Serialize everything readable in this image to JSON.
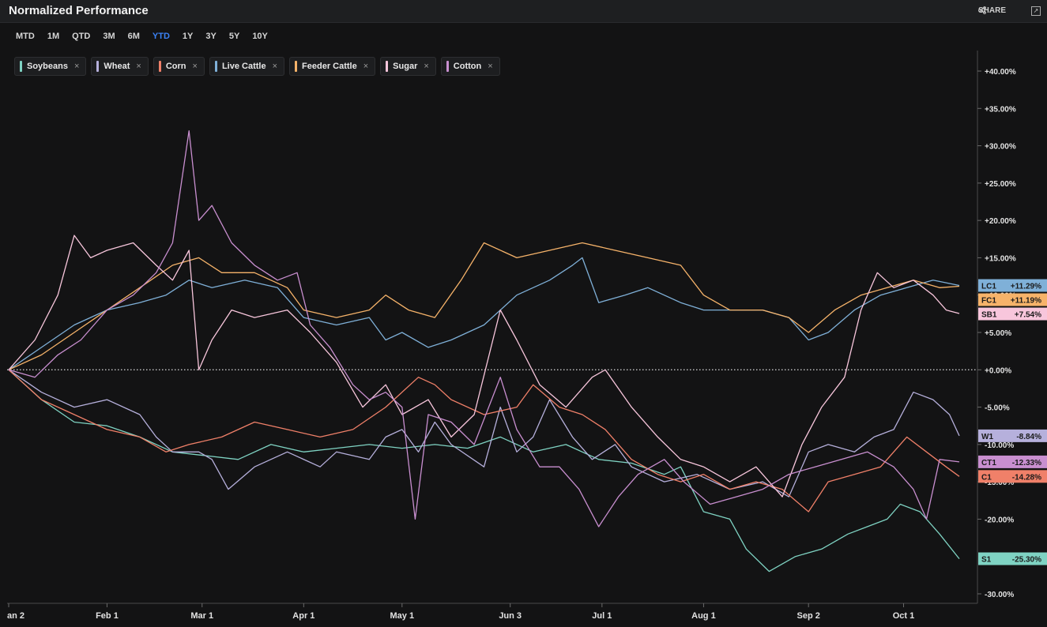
{
  "header": {
    "title": "Normalized Performance",
    "share_label": "SHARE"
  },
  "ranges": [
    "MTD",
    "1M",
    "QTD",
    "3M",
    "6M",
    "YTD",
    "1Y",
    "3Y",
    "5Y",
    "10Y"
  ],
  "active_range": "YTD",
  "legend": [
    {
      "name": "Soybeans",
      "color": "#7fd3c3"
    },
    {
      "name": "Wheat",
      "color": "#b6b0dc"
    },
    {
      "name": "Corn",
      "color": "#f08069"
    },
    {
      "name": "Live Cattle",
      "color": "#7fb0d8"
    },
    {
      "name": "Feeder Cattle",
      "color": "#f6b36a"
    },
    {
      "name": "Sugar",
      "color": "#f8c6dc"
    },
    {
      "name": "Cotton",
      "color": "#c98fd0"
    }
  ],
  "chart_data": {
    "type": "line",
    "title": "Normalized Performance",
    "ylim": [
      -30,
      40
    ],
    "yticks": [
      "+40.00%",
      "+35.00%",
      "+30.00%",
      "+25.00%",
      "+20.00%",
      "+15.00%",
      "+10.00%",
      "+5.00%",
      "+0.00%",
      "-5.00%",
      "-10.00%",
      "-15.00%",
      "-20.00%",
      "-30.00%"
    ],
    "ytick_values": [
      40,
      35,
      30,
      25,
      20,
      15,
      10,
      5,
      0,
      -5,
      -10,
      -15,
      -20,
      -30
    ],
    "x_ticks": [
      {
        "label": "an 2",
        "t": 0
      },
      {
        "label": "Feb 1",
        "t": 30
      },
      {
        "label": "Mar 1",
        "t": 59
      },
      {
        "label": "Apr 1",
        "t": 90
      },
      {
        "label": "May 1",
        "t": 120
      },
      {
        "label": "Jun 3",
        "t": 153
      },
      {
        "label": "Jul 1",
        "t": 181
      },
      {
        "label": "Aug 1",
        "t": 212
      },
      {
        "label": "Sep 2",
        "t": 244
      },
      {
        "label": "Oct 1",
        "t": 273
      }
    ],
    "x_max": 290,
    "baseline": 0,
    "series": [
      {
        "name": "Soybeans",
        "ticker": "S1",
        "color": "#7fd3c3",
        "last": "-25.30%",
        "last_value": -25.3,
        "points": [
          [
            0,
            0
          ],
          [
            10,
            -4
          ],
          [
            20,
            -7
          ],
          [
            30,
            -7.5
          ],
          [
            40,
            -9
          ],
          [
            50,
            -11
          ],
          [
            60,
            -11.5
          ],
          [
            70,
            -12
          ],
          [
            80,
            -10
          ],
          [
            90,
            -11
          ],
          [
            100,
            -10.5
          ],
          [
            110,
            -10
          ],
          [
            120,
            -10.5
          ],
          [
            130,
            -10
          ],
          [
            140,
            -10.5
          ],
          [
            150,
            -9
          ],
          [
            160,
            -11
          ],
          [
            170,
            -10
          ],
          [
            180,
            -12
          ],
          [
            190,
            -12.5
          ],
          [
            200,
            -14
          ],
          [
            205,
            -13
          ],
          [
            212,
            -19
          ],
          [
            220,
            -20
          ],
          [
            225,
            -24
          ],
          [
            232,
            -27
          ],
          [
            240,
            -25
          ],
          [
            248,
            -24
          ],
          [
            256,
            -22
          ],
          [
            262,
            -21
          ],
          [
            268,
            -20
          ],
          [
            272,
            -18
          ],
          [
            278,
            -19
          ],
          [
            284,
            -22
          ],
          [
            290,
            -25.3
          ]
        ]
      },
      {
        "name": "Wheat",
        "ticker": "W1",
        "color": "#b6b0dc",
        "last": "-8.84%",
        "last_value": -8.84,
        "points": [
          [
            0,
            0
          ],
          [
            10,
            -3
          ],
          [
            20,
            -5
          ],
          [
            30,
            -4
          ],
          [
            40,
            -6
          ],
          [
            45,
            -9
          ],
          [
            50,
            -11
          ],
          [
            58,
            -11
          ],
          [
            62,
            -12
          ],
          [
            67,
            -16
          ],
          [
            75,
            -13
          ],
          [
            85,
            -11
          ],
          [
            95,
            -13
          ],
          [
            100,
            -11
          ],
          [
            110,
            -12
          ],
          [
            115,
            -9
          ],
          [
            120,
            -8
          ],
          [
            125,
            -11
          ],
          [
            130,
            -7
          ],
          [
            135,
            -10
          ],
          [
            145,
            -13
          ],
          [
            150,
            -5
          ],
          [
            155,
            -11
          ],
          [
            160,
            -9
          ],
          [
            165,
            -4
          ],
          [
            172,
            -9
          ],
          [
            178,
            -12
          ],
          [
            185,
            -10
          ],
          [
            190,
            -13
          ],
          [
            200,
            -15
          ],
          [
            210,
            -14
          ],
          [
            220,
            -16
          ],
          [
            230,
            -15
          ],
          [
            238,
            -17
          ],
          [
            244,
            -11
          ],
          [
            250,
            -10
          ],
          [
            258,
            -11
          ],
          [
            264,
            -9
          ],
          [
            270,
            -8
          ],
          [
            276,
            -3
          ],
          [
            282,
            -4
          ],
          [
            287,
            -6
          ],
          [
            290,
            -8.84
          ]
        ]
      },
      {
        "name": "Corn",
        "ticker": "C1",
        "color": "#f08069",
        "last": "-14.28%",
        "last_value": -14.28,
        "points": [
          [
            0,
            0
          ],
          [
            10,
            -4
          ],
          [
            20,
            -6
          ],
          [
            30,
            -8
          ],
          [
            40,
            -9
          ],
          [
            48,
            -11
          ],
          [
            55,
            -10
          ],
          [
            65,
            -9
          ],
          [
            75,
            -7
          ],
          [
            85,
            -8
          ],
          [
            95,
            -9
          ],
          [
            105,
            -8
          ],
          [
            115,
            -5
          ],
          [
            125,
            -1
          ],
          [
            130,
            -2
          ],
          [
            135,
            -4
          ],
          [
            145,
            -6
          ],
          [
            155,
            -5
          ],
          [
            160,
            -2
          ],
          [
            168,
            -5
          ],
          [
            175,
            -6
          ],
          [
            182,
            -8
          ],
          [
            190,
            -12
          ],
          [
            198,
            -14
          ],
          [
            205,
            -15
          ],
          [
            212,
            -14
          ],
          [
            220,
            -16
          ],
          [
            228,
            -15
          ],
          [
            236,
            -16
          ],
          [
            244,
            -19
          ],
          [
            250,
            -15
          ],
          [
            258,
            -14
          ],
          [
            266,
            -13
          ],
          [
            274,
            -9
          ],
          [
            280,
            -11
          ],
          [
            286,
            -13
          ],
          [
            290,
            -14.28
          ]
        ]
      },
      {
        "name": "Live Cattle",
        "ticker": "LC1",
        "color": "#7fb0d8",
        "last": "+11.29%",
        "last_value": 11.29,
        "points": [
          [
            0,
            0
          ],
          [
            10,
            3
          ],
          [
            20,
            6
          ],
          [
            30,
            8
          ],
          [
            40,
            9
          ],
          [
            48,
            10
          ],
          [
            55,
            12
          ],
          [
            62,
            11
          ],
          [
            72,
            12
          ],
          [
            82,
            11
          ],
          [
            90,
            7
          ],
          [
            100,
            6
          ],
          [
            110,
            7
          ],
          [
            115,
            4
          ],
          [
            120,
            5
          ],
          [
            128,
            3
          ],
          [
            135,
            4
          ],
          [
            145,
            6
          ],
          [
            155,
            10
          ],
          [
            165,
            12
          ],
          [
            172,
            14
          ],
          [
            175,
            15
          ],
          [
            180,
            9
          ],
          [
            188,
            10
          ],
          [
            195,
            11
          ],
          [
            205,
            9
          ],
          [
            212,
            8
          ],
          [
            220,
            8
          ],
          [
            230,
            8
          ],
          [
            238,
            7
          ],
          [
            244,
            4
          ],
          [
            250,
            5
          ],
          [
            258,
            8
          ],
          [
            266,
            10
          ],
          [
            274,
            11
          ],
          [
            282,
            12
          ],
          [
            290,
            11.29
          ]
        ]
      },
      {
        "name": "Feeder Cattle",
        "ticker": "FC1",
        "color": "#f6b36a",
        "last": "+11.19%",
        "last_value": 11.19,
        "points": [
          [
            0,
            0
          ],
          [
            10,
            2
          ],
          [
            20,
            5
          ],
          [
            30,
            8
          ],
          [
            40,
            11
          ],
          [
            50,
            14
          ],
          [
            58,
            15
          ],
          [
            65,
            13
          ],
          [
            75,
            13
          ],
          [
            85,
            11
          ],
          [
            90,
            8
          ],
          [
            100,
            7
          ],
          [
            110,
            8
          ],
          [
            115,
            10
          ],
          [
            122,
            8
          ],
          [
            130,
            7
          ],
          [
            138,
            12
          ],
          [
            145,
            17
          ],
          [
            155,
            15
          ],
          [
            165,
            16
          ],
          [
            175,
            17
          ],
          [
            185,
            16
          ],
          [
            195,
            15
          ],
          [
            205,
            14
          ],
          [
            212,
            10
          ],
          [
            220,
            8
          ],
          [
            230,
            8
          ],
          [
            238,
            7
          ],
          [
            244,
            5
          ],
          [
            252,
            8
          ],
          [
            260,
            10
          ],
          [
            268,
            11
          ],
          [
            276,
            12
          ],
          [
            284,
            11
          ],
          [
            290,
            11.19
          ]
        ]
      },
      {
        "name": "Sugar",
        "ticker": "SB1",
        "color": "#f8c6dc",
        "last": "+7.54%",
        "last_value": 7.54,
        "points": [
          [
            0,
            0
          ],
          [
            8,
            4
          ],
          [
            15,
            10
          ],
          [
            20,
            18
          ],
          [
            25,
            15
          ],
          [
            30,
            16
          ],
          [
            38,
            17
          ],
          [
            45,
            14
          ],
          [
            50,
            12
          ],
          [
            55,
            16
          ],
          [
            58,
            0
          ],
          [
            62,
            4
          ],
          [
            68,
            8
          ],
          [
            75,
            7
          ],
          [
            85,
            8
          ],
          [
            92,
            5
          ],
          [
            100,
            1
          ],
          [
            108,
            -5
          ],
          [
            115,
            -2
          ],
          [
            120,
            -6
          ],
          [
            128,
            -4
          ],
          [
            135,
            -9
          ],
          [
            142,
            -6
          ],
          [
            150,
            8
          ],
          [
            155,
            4
          ],
          [
            162,
            -2
          ],
          [
            170,
            -5
          ],
          [
            178,
            -1
          ],
          [
            182,
            0
          ],
          [
            190,
            -5
          ],
          [
            198,
            -9
          ],
          [
            205,
            -12
          ],
          [
            212,
            -13
          ],
          [
            220,
            -15
          ],
          [
            228,
            -13
          ],
          [
            236,
            -17
          ],
          [
            242,
            -10
          ],
          [
            248,
            -5
          ],
          [
            255,
            -1
          ],
          [
            260,
            8
          ],
          [
            265,
            13
          ],
          [
            270,
            11
          ],
          [
            276,
            12
          ],
          [
            282,
            10
          ],
          [
            286,
            8
          ],
          [
            290,
            7.54
          ]
        ]
      },
      {
        "name": "Cotton",
        "ticker": "CT1",
        "color": "#c98fd0",
        "last": "-12.33%",
        "last_value": -12.33,
        "points": [
          [
            0,
            0
          ],
          [
            8,
            -1
          ],
          [
            15,
            2
          ],
          [
            22,
            4
          ],
          [
            30,
            8
          ],
          [
            38,
            10
          ],
          [
            45,
            13
          ],
          [
            50,
            17
          ],
          [
            55,
            32
          ],
          [
            58,
            20
          ],
          [
            62,
            22
          ],
          [
            68,
            17
          ],
          [
            75,
            14
          ],
          [
            82,
            12
          ],
          [
            88,
            13
          ],
          [
            92,
            6
          ],
          [
            98,
            3
          ],
          [
            105,
            -2
          ],
          [
            110,
            -4
          ],
          [
            115,
            -3
          ],
          [
            120,
            -5
          ],
          [
            124,
            -20
          ],
          [
            128,
            -6
          ],
          [
            135,
            -7
          ],
          [
            142,
            -10
          ],
          [
            150,
            -1
          ],
          [
            155,
            -8
          ],
          [
            162,
            -13
          ],
          [
            168,
            -13
          ],
          [
            174,
            -16
          ],
          [
            180,
            -21
          ],
          [
            186,
            -17
          ],
          [
            192,
            -14
          ],
          [
            200,
            -12
          ],
          [
            206,
            -15
          ],
          [
            214,
            -18
          ],
          [
            222,
            -17
          ],
          [
            230,
            -16
          ],
          [
            238,
            -14
          ],
          [
            246,
            -13
          ],
          [
            254,
            -12
          ],
          [
            262,
            -11
          ],
          [
            270,
            -13
          ],
          [
            276,
            -16
          ],
          [
            280,
            -20
          ],
          [
            284,
            -12
          ],
          [
            290,
            -12.33
          ]
        ]
      }
    ]
  }
}
